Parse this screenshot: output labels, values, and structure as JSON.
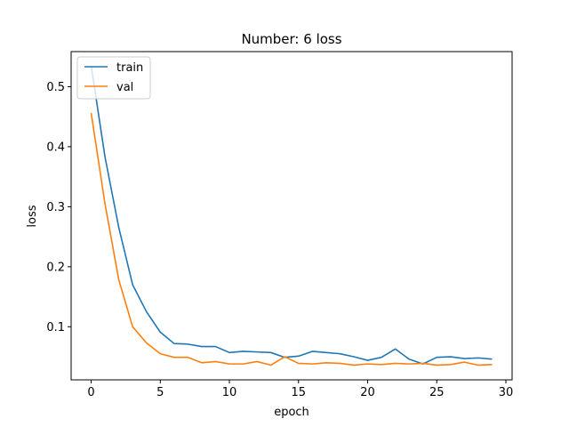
{
  "chart_data": {
    "type": "line",
    "title": "Number: 6 loss",
    "xlabel": "epoch",
    "ylabel": "loss",
    "xlim": [
      -1.45,
      30.45
    ],
    "ylim": [
      0.0115,
      0.5585
    ],
    "xticks": [
      0,
      5,
      10,
      15,
      20,
      25,
      30
    ],
    "yticks": [
      0.1,
      0.2,
      0.3,
      0.4,
      0.5
    ],
    "grid": false,
    "legend_position": "top-left",
    "x": [
      0,
      1,
      2,
      3,
      4,
      5,
      6,
      7,
      8,
      9,
      10,
      11,
      12,
      13,
      14,
      15,
      16,
      17,
      18,
      19,
      20,
      21,
      22,
      23,
      24,
      25,
      26,
      27,
      28,
      29
    ],
    "series": [
      {
        "name": "train",
        "color": "#1f77b4",
        "values": [
          0.535,
          0.383,
          0.265,
          0.17,
          0.125,
          0.091,
          0.072,
          0.071,
          0.067,
          0.067,
          0.057,
          0.059,
          0.058,
          0.057,
          0.049,
          0.051,
          0.059,
          0.057,
          0.055,
          0.05,
          0.044,
          0.049,
          0.063,
          0.046,
          0.038,
          0.049,
          0.05,
          0.047,
          0.048,
          0.046
        ]
      },
      {
        "name": "val",
        "color": "#ff7f0e",
        "values": [
          0.456,
          0.305,
          0.178,
          0.1,
          0.073,
          0.055,
          0.049,
          0.049,
          0.04,
          0.042,
          0.038,
          0.038,
          0.042,
          0.036,
          0.05,
          0.039,
          0.038,
          0.04,
          0.039,
          0.036,
          0.038,
          0.037,
          0.039,
          0.038,
          0.039,
          0.036,
          0.037,
          0.041,
          0.036,
          0.037
        ]
      }
    ]
  }
}
